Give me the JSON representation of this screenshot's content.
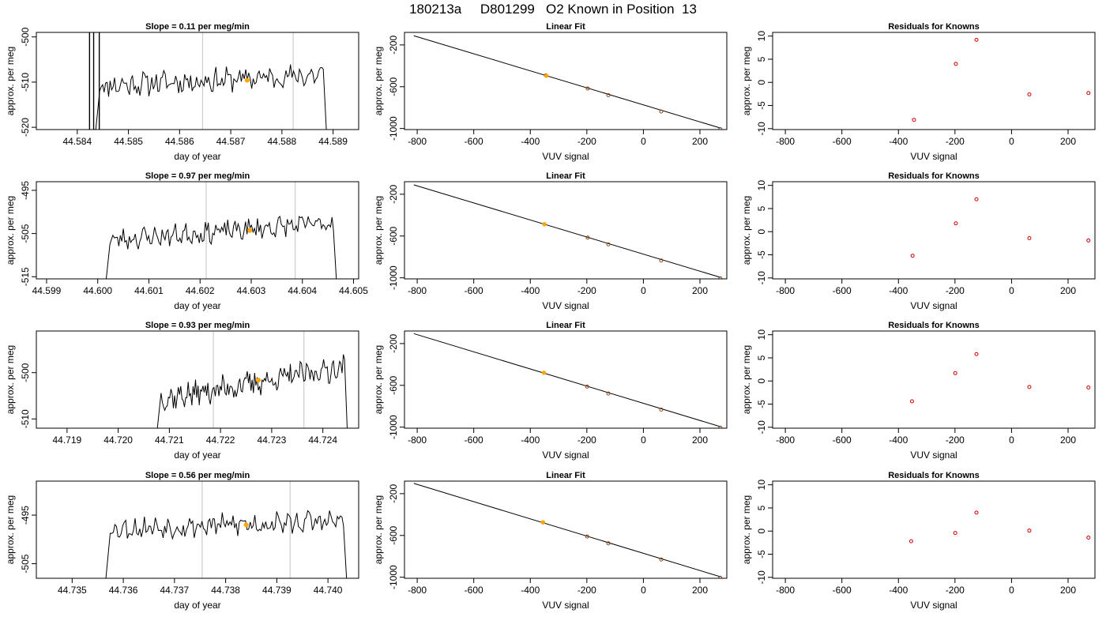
{
  "figure": {
    "title": "180213a     D801299   O2 Known in Position  13"
  },
  "colors": {
    "trace": "#000000",
    "fit_line": "#000000",
    "grid_marker": "#cccccc",
    "known_point": "#8b4513",
    "highlight_point": "#ffa500",
    "residual_point": "#cc0000"
  },
  "chart_data": [
    {
      "type": "line",
      "panel": "time-series",
      "title": "Slope =  0.11  per meg/min",
      "xlabel": "day of year",
      "ylabel": "approx. per meg",
      "xlim": [
        44.5832,
        44.5895
      ],
      "ylim": [
        -520.5,
        -499
      ],
      "xticks": [
        "44.584",
        "44.585",
        "44.586",
        "44.587",
        "44.588",
        "44.589"
      ],
      "xtick_values": [
        44.584,
        44.585,
        44.586,
        44.587,
        44.588,
        44.589
      ],
      "yticks": [
        "-520",
        "-510",
        "-500"
      ],
      "ytick_values": [
        -520,
        -510,
        -500
      ],
      "vlines": [
        44.58645,
        44.58822
      ],
      "trace_start": 44.5843,
      "trace_end": 44.5889,
      "baseline": -510.8,
      "drift": 2.4,
      "noise": 2.2,
      "seed": 11,
      "spikes": [
        44.58424,
        44.58432,
        44.58443
      ],
      "highlight": {
        "x": 44.58732,
        "y": -509.6
      }
    },
    {
      "type": "scatter",
      "panel": "linear-fit",
      "title": "Linear Fit",
      "xlabel": "VUV signal",
      "ylabel": "approx. per meg",
      "xlim": [
        -845,
        295
      ],
      "ylim": [
        -1010,
        -80
      ],
      "xticks": [
        "-800",
        "-600",
        "-400",
        "-200",
        "0",
        "200"
      ],
      "xtick_values": [
        -800,
        -600,
        -400,
        -200,
        0,
        200
      ],
      "yticks": [
        "-1000",
        "-600",
        "-200"
      ],
      "ytick_values": [
        -1000,
        -600,
        -200
      ],
      "line": {
        "x": [
          -812,
          273
        ],
        "y": [
          -112,
          -996
        ]
      },
      "points": [
        {
          "x": -345,
          "y": -491
        },
        {
          "x": -197,
          "y": -617
        },
        {
          "x": -124,
          "y": -681
        },
        {
          "x": 63,
          "y": -837
        },
        {
          "x": 272,
          "y": -1006
        }
      ],
      "highlight": {
        "x": -343,
        "y": -495
      }
    },
    {
      "type": "scatter",
      "panel": "residuals",
      "title": "Residuals for Knowns",
      "xlabel": "VUV signal",
      "ylabel": "approx. per meg",
      "xlim": [
        -845,
        295
      ],
      "ylim": [
        -10.2,
        10.8
      ],
      "xticks": [
        "-800",
        "-600",
        "-400",
        "-200",
        "0",
        "200"
      ],
      "xtick_values": [
        -800,
        -600,
        -400,
        -200,
        0,
        200
      ],
      "yticks": [
        "-10",
        "-5",
        "0",
        "5",
        "10"
      ],
      "ytick_values": [
        -10,
        -5,
        0,
        5,
        10
      ],
      "points": [
        {
          "x": -345,
          "y": -8.1
        },
        {
          "x": -197,
          "y": 4.0
        },
        {
          "x": -124,
          "y": 9.2
        },
        {
          "x": 63,
          "y": -2.6
        },
        {
          "x": 272,
          "y": -2.3
        }
      ]
    },
    {
      "type": "line",
      "panel": "time-series",
      "title": "Slope =  0.97  per meg/min",
      "xlabel": "day of year",
      "ylabel": "approx. per meg",
      "xlim": [
        44.5988,
        44.6051
      ],
      "ylim": [
        -515.5,
        -493
      ],
      "xticks": [
        "44.599",
        "44.600",
        "44.601",
        "44.602",
        "44.603",
        "44.604",
        "44.605"
      ],
      "xtick_values": [
        44.599,
        44.6,
        44.601,
        44.602,
        44.603,
        44.604,
        44.605
      ],
      "yticks": [
        "-515",
        "-505",
        "-495"
      ],
      "ytick_values": [
        -515,
        -505,
        -495
      ],
      "vlines": [
        44.60212,
        44.60386
      ],
      "trace_start": 44.6001,
      "trace_end": 44.6047,
      "baseline": -506.5,
      "drift": 4.0,
      "noise": 2.0,
      "seed": 23,
      "spikes": [],
      "highlight": {
        "x": 44.60297,
        "y": -504.3
      }
    },
    {
      "type": "scatter",
      "panel": "linear-fit",
      "title": "Linear Fit",
      "xlabel": "VUV signal",
      "ylabel": "approx. per meg",
      "xlim": [
        -845,
        295
      ],
      "ylim": [
        -1010,
        -80
      ],
      "xticks": [
        "-800",
        "-600",
        "-400",
        "-200",
        "0",
        "200"
      ],
      "xtick_values": [
        -800,
        -600,
        -400,
        -200,
        0,
        200
      ],
      "yticks": [
        "-1000",
        "-600",
        "-200"
      ],
      "ytick_values": [
        -1000,
        -600,
        -200
      ],
      "line": {
        "x": [
          -812,
          273
        ],
        "y": [
          -110,
          -996
        ]
      },
      "points": [
        {
          "x": -350,
          "y": -487
        },
        {
          "x": -197,
          "y": -615
        },
        {
          "x": -124,
          "y": -680
        },
        {
          "x": 63,
          "y": -834
        },
        {
          "x": 272,
          "y": -1005
        }
      ],
      "highlight": {
        "x": -350,
        "y": -487
      }
    },
    {
      "type": "scatter",
      "panel": "residuals",
      "title": "Residuals for Knowns",
      "xlabel": "VUV signal",
      "ylabel": "approx. per meg",
      "xlim": [
        -845,
        295
      ],
      "ylim": [
        -10.2,
        10.8
      ],
      "xticks": [
        "-800",
        "-600",
        "-400",
        "-200",
        "0",
        "200"
      ],
      "xtick_values": [
        -800,
        -600,
        -400,
        -200,
        0,
        200
      ],
      "yticks": [
        "-10",
        "-5",
        "0",
        "5",
        "10"
      ],
      "ytick_values": [
        -10,
        -5,
        0,
        5,
        10
      ],
      "points": [
        {
          "x": -350,
          "y": -5.2
        },
        {
          "x": -197,
          "y": 1.8
        },
        {
          "x": -124,
          "y": 7.0
        },
        {
          "x": 63,
          "y": -1.4
        },
        {
          "x": 272,
          "y": -1.9
        }
      ]
    },
    {
      "type": "line",
      "panel": "time-series",
      "title": "Slope =  0.93  per meg/min",
      "xlabel": "day of year",
      "ylabel": "approx. per meg",
      "xlim": [
        44.7184,
        44.7247
      ],
      "ylim": [
        -512,
        -491
      ],
      "xticks": [
        "44.719",
        "44.720",
        "44.721",
        "44.722",
        "44.723",
        "44.724"
      ],
      "xtick_values": [
        44.719,
        44.72,
        44.721,
        44.722,
        44.723,
        44.724
      ],
      "yticks": [
        "-510",
        "-500"
      ],
      "ytick_values": [
        -510,
        -500
      ],
      "vlines": [
        44.72186,
        44.72363
      ],
      "trace_start": 44.7207,
      "trace_end": 44.7245,
      "baseline": -505.8,
      "drift": 7.0,
      "noise": 2.3,
      "seed": 37,
      "spikes": [],
      "highlight": {
        "x": 44.72274,
        "y": -501.6
      }
    },
    {
      "type": "scatter",
      "panel": "linear-fit",
      "title": "Linear Fit",
      "xlabel": "VUV signal",
      "ylabel": "approx. per meg",
      "xlim": [
        -845,
        295
      ],
      "ylim": [
        -1010,
        -80
      ],
      "xticks": [
        "-800",
        "-600",
        "-400",
        "-200",
        "0",
        "200"
      ],
      "xtick_values": [
        -800,
        -600,
        -400,
        -200,
        0,
        200
      ],
      "yticks": [
        "-1000",
        "-600",
        "-200"
      ],
      "ytick_values": [
        -1000,
        -600,
        -200
      ],
      "line": {
        "x": [
          -812,
          273
        ],
        "y": [
          -105,
          -996
        ]
      },
      "points": [
        {
          "x": -352,
          "y": -480
        },
        {
          "x": -199,
          "y": -612
        },
        {
          "x": -124,
          "y": -678
        },
        {
          "x": 63,
          "y": -832
        },
        {
          "x": 272,
          "y": -1005
        }
      ],
      "highlight": {
        "x": -352,
        "y": -480
      }
    },
    {
      "type": "scatter",
      "panel": "residuals",
      "title": "Residuals for Knowns",
      "xlabel": "VUV signal",
      "ylabel": "approx. per meg",
      "xlim": [
        -845,
        295
      ],
      "ylim": [
        -10.2,
        10.8
      ],
      "xticks": [
        "-800",
        "-600",
        "-400",
        "-200",
        "0",
        "200"
      ],
      "xtick_values": [
        -800,
        -600,
        -400,
        -200,
        0,
        200
      ],
      "yticks": [
        "-10",
        "-5",
        "0",
        "5",
        "10"
      ],
      "ytick_values": [
        -10,
        -5,
        0,
        5,
        10
      ],
      "points": [
        {
          "x": -352,
          "y": -4.4
        },
        {
          "x": -199,
          "y": 1.7
        },
        {
          "x": -124,
          "y": 5.8
        },
        {
          "x": 63,
          "y": -1.3
        },
        {
          "x": 272,
          "y": -1.4
        }
      ]
    },
    {
      "type": "line",
      "panel": "time-series",
      "title": "Slope =  0.56  per meg/min",
      "xlabel": "day of year",
      "ylabel": "approx. per meg",
      "xlim": [
        44.7343,
        44.7406
      ],
      "ylim": [
        -508,
        -488
      ],
      "xticks": [
        "44.735",
        "44.736",
        "44.737",
        "44.738",
        "44.739",
        "44.740"
      ],
      "xtick_values": [
        44.735,
        44.736,
        44.737,
        44.738,
        44.739,
        44.74
      ],
      "yticks": [
        "-505",
        "-495"
      ],
      "ytick_values": [
        -505,
        -495
      ],
      "vlines": [
        44.73754,
        44.73926
      ],
      "trace_start": 44.7356,
      "trace_end": 44.7404,
      "baseline": -497.8,
      "drift": 1.6,
      "noise": 1.9,
      "seed": 53,
      "spikes": [],
      "highlight": {
        "x": 44.7384,
        "y": -497.0
      }
    },
    {
      "type": "scatter",
      "panel": "linear-fit",
      "title": "Linear Fit",
      "xlabel": "VUV signal",
      "ylabel": "approx. per meg",
      "xlim": [
        -845,
        295
      ],
      "ylim": [
        -1010,
        -80
      ],
      "xticks": [
        "-800",
        "-600",
        "-400",
        "-200",
        "0",
        "200"
      ],
      "xtick_values": [
        -800,
        -600,
        -400,
        -200,
        0,
        200
      ],
      "yticks": [
        "-1000",
        "-600",
        "-200"
      ],
      "ytick_values": [
        -1000,
        -600,
        -200
      ],
      "line": {
        "x": [
          -812,
          273
        ],
        "y": [
          -102,
          -996
        ]
      },
      "points": [
        {
          "x": -355,
          "y": -475
        },
        {
          "x": -199,
          "y": -610
        },
        {
          "x": -124,
          "y": -675
        },
        {
          "x": 63,
          "y": -830
        },
        {
          "x": 272,
          "y": -1005
        }
      ],
      "highlight": {
        "x": -355,
        "y": -475
      }
    },
    {
      "type": "scatter",
      "panel": "residuals",
      "title": "Residuals for Knowns",
      "xlabel": "VUV signal",
      "ylabel": "approx. per meg",
      "xlim": [
        -845,
        295
      ],
      "ylim": [
        -10.2,
        10.8
      ],
      "xticks": [
        "-800",
        "-600",
        "-400",
        "-200",
        "0",
        "200"
      ],
      "xtick_values": [
        -800,
        -600,
        -400,
        -200,
        0,
        200
      ],
      "yticks": [
        "-10",
        "-5",
        "0",
        "5",
        "10"
      ],
      "ytick_values": [
        -10,
        -5,
        0,
        5,
        10
      ],
      "points": [
        {
          "x": -355,
          "y": -2.2
        },
        {
          "x": -199,
          "y": -0.4
        },
        {
          "x": -124,
          "y": 4.0
        },
        {
          "x": 63,
          "y": 0.1
        },
        {
          "x": 272,
          "y": -1.4
        }
      ]
    }
  ]
}
